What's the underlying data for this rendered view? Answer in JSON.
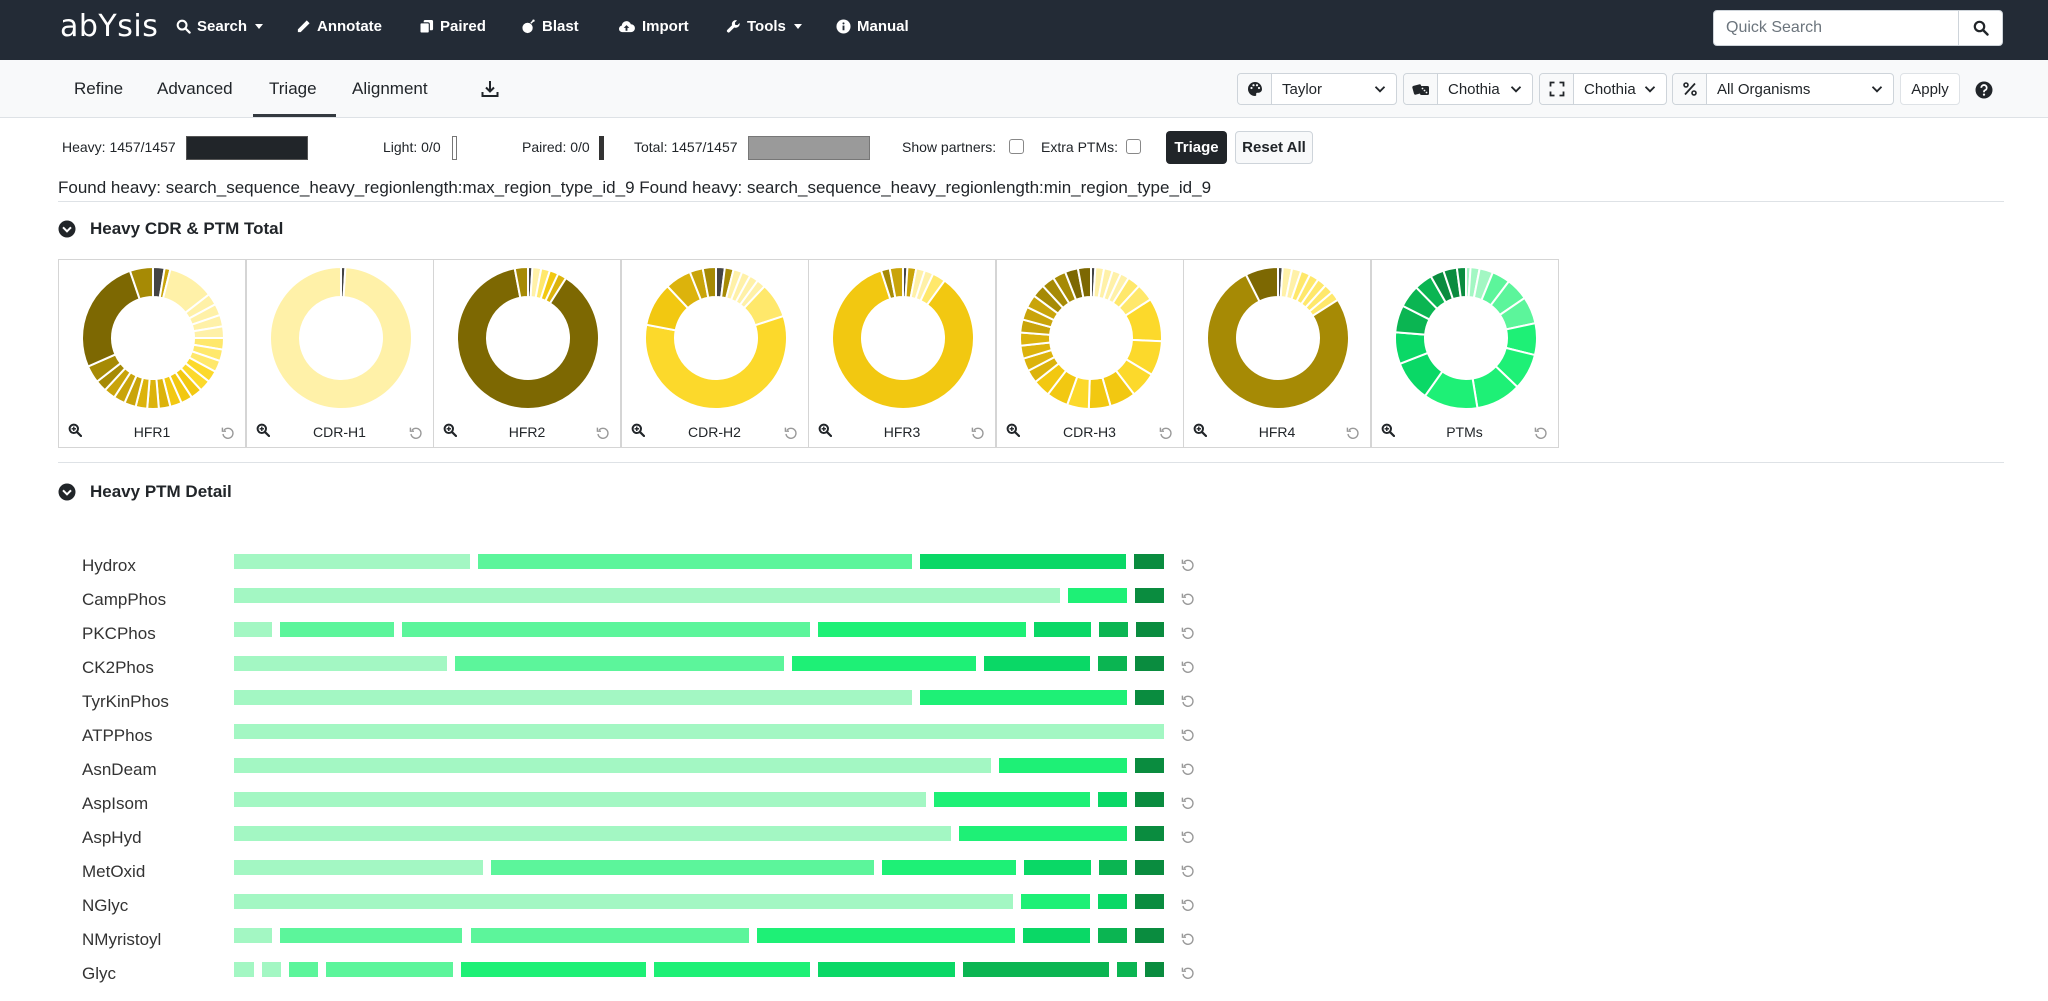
{
  "navbar": {
    "logo": "abYsis",
    "items": [
      {
        "label": "Search",
        "icon": "search-icon",
        "dropdown": true
      },
      {
        "label": "Annotate",
        "icon": "pen-icon",
        "dropdown": false
      },
      {
        "label": "Paired",
        "icon": "copy-icon",
        "dropdown": false
      },
      {
        "label": "Blast",
        "icon": "bomb-icon",
        "dropdown": false
      },
      {
        "label": "Import",
        "icon": "cloud-upload-icon",
        "dropdown": false
      },
      {
        "label": "Tools",
        "icon": "wrench-icon",
        "dropdown": true
      },
      {
        "label": "Manual",
        "icon": "info-icon",
        "dropdown": false
      }
    ],
    "quick_search_placeholder": "Quick Search"
  },
  "subnav": {
    "tabs": [
      {
        "label": "Refine",
        "active": false
      },
      {
        "label": "Advanced",
        "active": false
      },
      {
        "label": "Triage",
        "active": true
      },
      {
        "label": "Alignment",
        "active": false
      }
    ],
    "selects": [
      {
        "icon": "palette-icon",
        "value": "Taylor"
      },
      {
        "icon": "dice-icon",
        "value": "Chothia"
      },
      {
        "icon": "expand-icon",
        "value": "Chothia"
      },
      {
        "icon": "percent-icon",
        "value": "All Organisms"
      }
    ],
    "apply_label": "Apply"
  },
  "filters": {
    "heavy": "Heavy: 1457/1457",
    "light": "Light: 0/0",
    "paired": "Paired: 0/0",
    "total": "Total: 1457/1457",
    "show_partners": "Show partners:",
    "extra_ptms": "Extra PTMs:",
    "triage_label": "Triage",
    "reset_all_label": "Reset All"
  },
  "found_text": "Found heavy: search_sequence_heavy_regionlength:max_region_type_id_9 Found heavy: search_sequence_heavy_regionlength:min_region_type_id_9",
  "sections": {
    "cdr_title": "Heavy CDR & PTM Total",
    "ptm_title": "Heavy PTM Detail"
  },
  "colors": {
    "navbar": "#232b36",
    "yellow_palette": [
      "#fff1a8",
      "#ffe86b",
      "#fcd92b",
      "#f2c811",
      "#dcb30c",
      "#c9a40a",
      "#a68a05",
      "#7d6802",
      "#444444"
    ],
    "green_palette": [
      "#a3f7c3",
      "#5cf59b",
      "#1ef076",
      "#0ad866",
      "#0bb552",
      "#0a8c3f"
    ]
  },
  "donuts": [
    {
      "label": "HFR1",
      "segments": [
        {
          "v": 2,
          "c": "#444444"
        },
        {
          "v": 1,
          "c": "#c9a40a"
        },
        {
          "v": 8,
          "c": "#fff1a8"
        },
        {
          "v": 2,
          "c": "#fff1a8"
        },
        {
          "v": 2,
          "c": "#fff1a8"
        },
        {
          "v": 2,
          "c": "#fff1a8"
        },
        {
          "v": 2,
          "c": "#fff1a8"
        },
        {
          "v": 2,
          "c": "#ffe86b"
        },
        {
          "v": 2,
          "c": "#ffe86b"
        },
        {
          "v": 2,
          "c": "#ffe86b"
        },
        {
          "v": 2,
          "c": "#fcd92b"
        },
        {
          "v": 2,
          "c": "#fcd92b"
        },
        {
          "v": 2,
          "c": "#f2c811"
        },
        {
          "v": 2,
          "c": "#f2c811"
        },
        {
          "v": 2,
          "c": "#f2c811"
        },
        {
          "v": 2,
          "c": "#dcb30c"
        },
        {
          "v": 2,
          "c": "#dcb30c"
        },
        {
          "v": 2,
          "c": "#dcb30c"
        },
        {
          "v": 2,
          "c": "#c9a40a"
        },
        {
          "v": 2,
          "c": "#c9a40a"
        },
        {
          "v": 2,
          "c": "#c9a40a"
        },
        {
          "v": 2,
          "c": "#a68a05"
        },
        {
          "v": 3,
          "c": "#a68a05"
        },
        {
          "v": 20,
          "c": "#7d6802"
        },
        {
          "v": 4,
          "c": "#a68a05"
        }
      ]
    },
    {
      "label": "CDR-H1",
      "segments": [
        {
          "v": 1,
          "c": "#444444"
        },
        {
          "v": 99,
          "c": "#fff1a8"
        }
      ]
    },
    {
      "label": "HFR2",
      "segments": [
        {
          "v": 1,
          "c": "#444444"
        },
        {
          "v": 2,
          "c": "#fff1a8"
        },
        {
          "v": 2,
          "c": "#ffe86b"
        },
        {
          "v": 2,
          "c": "#f2c811"
        },
        {
          "v": 2,
          "c": "#dcb30c"
        },
        {
          "v": 88,
          "c": "#7d6802"
        },
        {
          "v": 3,
          "c": "#a68a05"
        }
      ]
    },
    {
      "label": "CDR-H2",
      "segments": [
        {
          "v": 2,
          "c": "#444444"
        },
        {
          "v": 2,
          "c": "#a68a05"
        },
        {
          "v": 2,
          "c": "#fff1a8"
        },
        {
          "v": 2,
          "c": "#fff1a8"
        },
        {
          "v": 2,
          "c": "#fff1a8"
        },
        {
          "v": 2,
          "c": "#fff1a8"
        },
        {
          "v": 8,
          "c": "#ffe86b"
        },
        {
          "v": 58,
          "c": "#fcd92b"
        },
        {
          "v": 10,
          "c": "#f2c811"
        },
        {
          "v": 6,
          "c": "#dcb30c"
        },
        {
          "v": 3,
          "c": "#c9a40a"
        },
        {
          "v": 3,
          "c": "#a68a05"
        }
      ]
    },
    {
      "label": "HFR3",
      "segments": [
        {
          "v": 1,
          "c": "#444444"
        },
        {
          "v": 2,
          "c": "#c9a40a"
        },
        {
          "v": 2,
          "c": "#fff1a8"
        },
        {
          "v": 2,
          "c": "#fff1a8"
        },
        {
          "v": 3,
          "c": "#ffe86b"
        },
        {
          "v": 85,
          "c": "#f2c811"
        },
        {
          "v": 2,
          "c": "#a68a05"
        },
        {
          "v": 3,
          "c": "#c9a40a"
        }
      ]
    },
    {
      "label": "CDR-H3",
      "segments": [
        {
          "v": 1,
          "c": "#444444"
        },
        {
          "v": 2,
          "c": "#fff1a8"
        },
        {
          "v": 2,
          "c": "#fff1a8"
        },
        {
          "v": 2,
          "c": "#fff1a8"
        },
        {
          "v": 2,
          "c": "#fff1a8"
        },
        {
          "v": 3,
          "c": "#ffe86b"
        },
        {
          "v": 4,
          "c": "#ffe86b"
        },
        {
          "v": 10,
          "c": "#fcd92b"
        },
        {
          "v": 8,
          "c": "#fcd92b"
        },
        {
          "v": 6,
          "c": "#fcd92b"
        },
        {
          "v": 6,
          "c": "#f2c811"
        },
        {
          "v": 5,
          "c": "#f2c811"
        },
        {
          "v": 5,
          "c": "#fcd92b"
        },
        {
          "v": 5,
          "c": "#f2c811"
        },
        {
          "v": 4,
          "c": "#f2c811"
        },
        {
          "v": 3,
          "c": "#dcb30c"
        },
        {
          "v": 3,
          "c": "#dcb30c"
        },
        {
          "v": 3,
          "c": "#dcb30c"
        },
        {
          "v": 3,
          "c": "#dcb30c"
        },
        {
          "v": 3,
          "c": "#c9a40a"
        },
        {
          "v": 3,
          "c": "#c9a40a"
        },
        {
          "v": 3,
          "c": "#c9a40a"
        },
        {
          "v": 3,
          "c": "#a68a05"
        },
        {
          "v": 3,
          "c": "#a68a05"
        },
        {
          "v": 3,
          "c": "#a68a05"
        },
        {
          "v": 3,
          "c": "#7d6802"
        },
        {
          "v": 3,
          "c": "#7d6802"
        }
      ]
    },
    {
      "label": "HFR4",
      "segments": [
        {
          "v": 1,
          "c": "#444444"
        },
        {
          "v": 2,
          "c": "#fff1a8"
        },
        {
          "v": 2,
          "c": "#fff1a8"
        },
        {
          "v": 2,
          "c": "#ffe86b"
        },
        {
          "v": 2,
          "c": "#ffe86b"
        },
        {
          "v": 2,
          "c": "#ffe86b"
        },
        {
          "v": 2,
          "c": "#ffe86b"
        },
        {
          "v": 2,
          "c": "#ffe86b"
        },
        {
          "v": 72,
          "c": "#a68a05"
        },
        {
          "v": 7,
          "c": "#7d6802"
        }
      ]
    },
    {
      "label": "PTMs",
      "segments": [
        {
          "v": 1,
          "c": "#a3f7c3"
        },
        {
          "v": 2,
          "c": "#a3f7c3"
        },
        {
          "v": 3,
          "c": "#a3f7c3"
        },
        {
          "v": 4,
          "c": "#5cf59b"
        },
        {
          "v": 5,
          "c": "#5cf59b"
        },
        {
          "v": 6,
          "c": "#5cf59b"
        },
        {
          "v": 7,
          "c": "#1ef076"
        },
        {
          "v": 8,
          "c": "#1ef076"
        },
        {
          "v": 10,
          "c": "#1ef076"
        },
        {
          "v": 12,
          "c": "#1ef076"
        },
        {
          "v": 9,
          "c": "#0ad866"
        },
        {
          "v": 7,
          "c": "#0ad866"
        },
        {
          "v": 6,
          "c": "#0bb552"
        },
        {
          "v": 5,
          "c": "#0bb552"
        },
        {
          "v": 4,
          "c": "#0bb552"
        },
        {
          "v": 3,
          "c": "#0a8c3f"
        },
        {
          "v": 3,
          "c": "#0a8c3f"
        },
        {
          "v": 2,
          "c": "#0a8c3f"
        }
      ]
    }
  ],
  "ptm_rows": [
    {
      "label": "Hydrox",
      "segments": [
        {
          "v": 24,
          "c": "#a3f7c3"
        },
        {
          "v": 44,
          "c": "#5cf59b"
        },
        {
          "v": 21,
          "c": "#0ad866"
        },
        {
          "v": 3,
          "c": "#0a8c3f"
        }
      ]
    },
    {
      "label": "CampPhos",
      "segments": [
        {
          "v": 84,
          "c": "#a3f7c3"
        },
        {
          "v": 6,
          "c": "#1ef076"
        },
        {
          "v": 3,
          "c": "#0a8c3f"
        }
      ]
    },
    {
      "label": "PKCPhos",
      "segments": [
        {
          "v": 4,
          "c": "#a3f7c3"
        },
        {
          "v": 12,
          "c": "#5cf59b"
        },
        {
          "v": 43,
          "c": "#5cf59b"
        },
        {
          "v": 22,
          "c": "#1ef076"
        },
        {
          "v": 6,
          "c": "#0ad866"
        },
        {
          "v": 3,
          "c": "#0bb552"
        },
        {
          "v": 3,
          "c": "#0a8c3f"
        }
      ]
    },
    {
      "label": "CK2Phos",
      "segments": [
        {
          "v": 22,
          "c": "#a3f7c3"
        },
        {
          "v": 34,
          "c": "#5cf59b"
        },
        {
          "v": 19,
          "c": "#1ef076"
        },
        {
          "v": 11,
          "c": "#0ad866"
        },
        {
          "v": 3,
          "c": "#0bb552"
        },
        {
          "v": 3,
          "c": "#0a8c3f"
        }
      ]
    },
    {
      "label": "TyrKinPhos",
      "segments": [
        {
          "v": 69,
          "c": "#a3f7c3"
        },
        {
          "v": 21,
          "c": "#1ef076"
        },
        {
          "v": 3,
          "c": "#0a8c3f"
        }
      ]
    },
    {
      "label": "ATPPhos",
      "segments": [
        {
          "v": 93,
          "c": "#a3f7c3"
        }
      ]
    },
    {
      "label": "AsnDeam",
      "segments": [
        {
          "v": 77,
          "c": "#a3f7c3"
        },
        {
          "v": 13,
          "c": "#1ef076"
        },
        {
          "v": 3,
          "c": "#0a8c3f"
        }
      ]
    },
    {
      "label": "AspIsom",
      "segments": [
        {
          "v": 71,
          "c": "#a3f7c3"
        },
        {
          "v": 16,
          "c": "#1ef076"
        },
        {
          "v": 3,
          "c": "#0ad866"
        },
        {
          "v": 3,
          "c": "#0a8c3f"
        }
      ]
    },
    {
      "label": "AspHyd",
      "segments": [
        {
          "v": 73,
          "c": "#a3f7c3"
        },
        {
          "v": 17,
          "c": "#1ef076"
        },
        {
          "v": 3,
          "c": "#0a8c3f"
        }
      ]
    },
    {
      "label": "MetOxid",
      "segments": [
        {
          "v": 26,
          "c": "#a3f7c3"
        },
        {
          "v": 40,
          "c": "#5cf59b"
        },
        {
          "v": 14,
          "c": "#1ef076"
        },
        {
          "v": 7,
          "c": "#0ad866"
        },
        {
          "v": 3,
          "c": "#0bb552"
        },
        {
          "v": 3,
          "c": "#0a8c3f"
        }
      ]
    },
    {
      "label": "NGlyc",
      "segments": [
        {
          "v": 80,
          "c": "#a3f7c3"
        },
        {
          "v": 7,
          "c": "#1ef076"
        },
        {
          "v": 3,
          "c": "#0ad866"
        },
        {
          "v": 3,
          "c": "#0a8c3f"
        }
      ]
    },
    {
      "label": "NMyristoyl",
      "segments": [
        {
          "v": 4,
          "c": "#a3f7c3"
        },
        {
          "v": 19,
          "c": "#5cf59b"
        },
        {
          "v": 29,
          "c": "#5cf59b"
        },
        {
          "v": 27,
          "c": "#1ef076"
        },
        {
          "v": 7,
          "c": "#0ad866"
        },
        {
          "v": 3,
          "c": "#0bb552"
        },
        {
          "v": 3,
          "c": "#0a8c3f"
        }
      ]
    },
    {
      "label": "Glyc",
      "segments": [
        {
          "v": 2,
          "c": "#a3f7c3"
        },
        {
          "v": 2,
          "c": "#a3f7c3"
        },
        {
          "v": 3,
          "c": "#5cf59b"
        },
        {
          "v": 13,
          "c": "#5cf59b"
        },
        {
          "v": 19,
          "c": "#1ef076"
        },
        {
          "v": 16,
          "c": "#1ef076"
        },
        {
          "v": 14,
          "c": "#0ad866"
        },
        {
          "v": 15,
          "c": "#0bb552"
        },
        {
          "v": 2,
          "c": "#0bb552"
        },
        {
          "v": 2,
          "c": "#0a8c3f"
        }
      ]
    }
  ]
}
